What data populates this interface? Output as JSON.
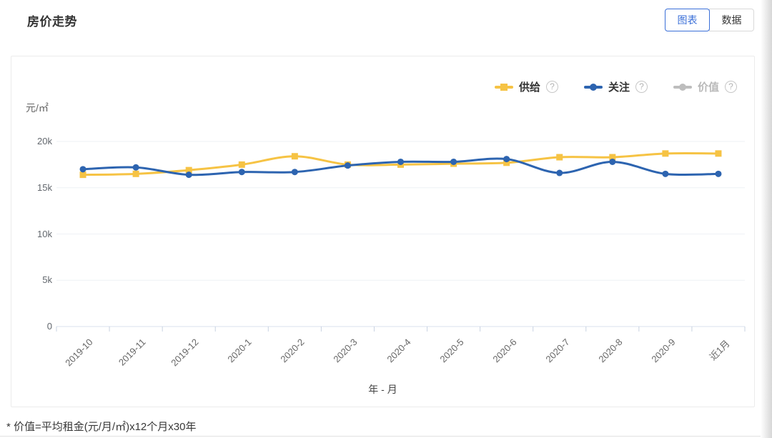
{
  "header": {
    "title": "房价走势"
  },
  "view_toggle": {
    "chart_label": "图表",
    "data_label": "数据",
    "active": "图表",
    "active_color": "#3a6fd8"
  },
  "legend": [
    {
      "label": "供给",
      "color": "#F6C344",
      "marker": "square",
      "disabled": false,
      "help": "?"
    },
    {
      "label": "关注",
      "color": "#2D64B0",
      "marker": "circle",
      "disabled": false,
      "help": "?"
    },
    {
      "label": "价值",
      "color": "#BDBDBD",
      "marker": "circle",
      "disabled": true,
      "help": "?"
    }
  ],
  "chart_data": {
    "type": "line",
    "title": "房价走势",
    "ylabel": "元/㎡",
    "xlabel": "年 - 月",
    "legend_position": "top-right",
    "grid": true,
    "smooth": true,
    "ylim_k": [
      0,
      21
    ],
    "yticks": [
      {
        "label": "0",
        "value": 0
      },
      {
        "label": "5k",
        "value": 5
      },
      {
        "label": "10k",
        "value": 10
      },
      {
        "label": "15k",
        "value": 15
      },
      {
        "label": "20k",
        "value": 20
      }
    ],
    "categories": [
      "2019-10",
      "2019-11",
      "2019-12",
      "2020-1",
      "2020-2",
      "2020-3",
      "2020-4",
      "2020-5",
      "2020-6",
      "2020-7",
      "2020-8",
      "2020-9",
      "近1月"
    ],
    "series": [
      {
        "name": "供给",
        "color": "#F6C344",
        "marker": "square",
        "values_k": [
          16.4,
          16.5,
          16.9,
          17.5,
          18.4,
          17.5,
          17.5,
          17.6,
          17.7,
          18.3,
          18.3,
          18.7,
          18.7
        ]
      },
      {
        "name": "关注",
        "color": "#2D64B0",
        "marker": "circle",
        "values_k": [
          17.0,
          17.2,
          16.4,
          16.7,
          16.7,
          17.4,
          17.8,
          17.8,
          18.1,
          16.6,
          17.8,
          16.5,
          16.5
        ]
      },
      {
        "name": "价值",
        "color": "#BDBDBD",
        "marker": "circle",
        "hidden": true,
        "values_k": []
      }
    ],
    "colors": {
      "gridline": "#eef1f6",
      "axis_line": "#d9e0ec",
      "tick": "#c9d3e2"
    }
  },
  "footnote": "* 价值=平均租金(元/月/㎡)x12个月x30年"
}
